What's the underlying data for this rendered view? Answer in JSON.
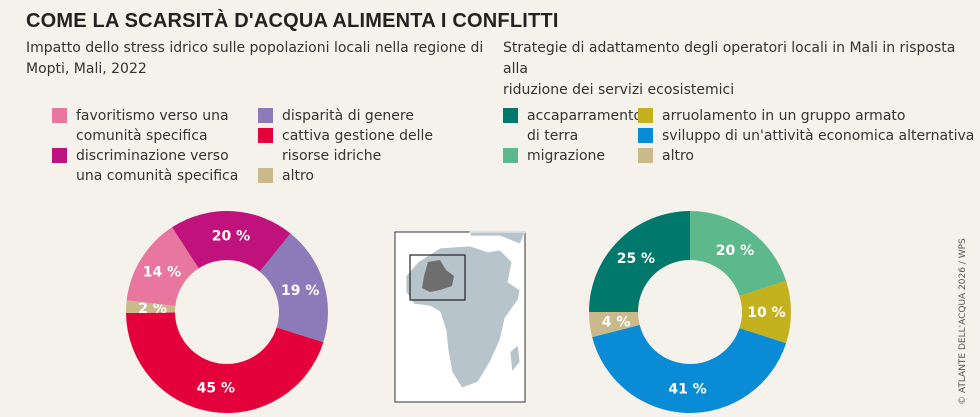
{
  "title": "COME LA SCARSITÀ D'ACQUA ALIMENTA I CONFLITTI",
  "credit": "© ATLANTE DELL'ACQUA 2026 / WPS",
  "chart_data": [
    {
      "type": "pie",
      "donut": true,
      "title": "Impatto dello stress idrico sulle popolazioni locali nella regione di Mopti, Mali, 2022",
      "title_lines": [
        "Impatto dello stress idrico sulle popolazioni locali nella regione di",
        "Mopti, Mali, 2022"
      ],
      "legend": [
        {
          "label": [
            "favoritismo verso una",
            "comunità specifica"
          ],
          "color": "#e8769f"
        },
        {
          "label": [
            "discriminazione verso",
            "una comunità specifica"
          ],
          "color": "#c0127c"
        },
        {
          "label": [
            "disparità di genere"
          ],
          "color": "#8b7cb9"
        },
        {
          "label": [
            "cattiva gestione delle",
            "risorse idriche"
          ],
          "color": "#e3003b"
        },
        {
          "label": [
            "altro"
          ],
          "color": "#c9b98b"
        }
      ],
      "slices": [
        {
          "name": "discriminazione verso una comunità specifica",
          "value": 20,
          "label": "20 %",
          "color": "#c0127c"
        },
        {
          "name": "disparità di genere",
          "value": 19,
          "label": "19 %",
          "color": "#8b7cb9"
        },
        {
          "name": "cattiva gestione delle risorse idriche",
          "value": 45,
          "label": "45 %",
          "color": "#e3003b"
        },
        {
          "name": "altro",
          "value": 2,
          "label": "2 %",
          "color": "#c9b98b"
        },
        {
          "name": "favoritismo verso una comunità specifica",
          "value": 14,
          "label": "14 %",
          "color": "#e8769f"
        }
      ]
    },
    {
      "type": "pie",
      "donut": true,
      "title": "Strategie di adattamento degli operatori locali in Mali in risposta alla riduzione dei servizi ecosistemici",
      "title_lines": [
        "Strategie di adattamento degli operatori locali in Mali in risposta alla",
        "riduzione dei servizi ecosistemici"
      ],
      "legend": [
        {
          "label": [
            "accaparramento",
            "di terra"
          ],
          "color": "#00796c"
        },
        {
          "label": [
            "migrazione"
          ],
          "color": "#5db98b"
        },
        {
          "label": [
            "arruolamento in un gruppo armato"
          ],
          "color": "#c3b11d"
        },
        {
          "label": [
            "sviluppo di un'attività economica alternativa"
          ],
          "color": "#0a8bd6"
        },
        {
          "label": [
            "altro"
          ],
          "color": "#c9b98b"
        }
      ],
      "slices": [
        {
          "name": "migrazione",
          "value": 20,
          "label": "20 %",
          "color": "#5db98b"
        },
        {
          "name": "arruolamento in un gruppo armato",
          "value": 10,
          "label": "10 %",
          "color": "#c3b11d"
        },
        {
          "name": "sviluppo di un'attività economica alternativa",
          "value": 41,
          "label": "41 %",
          "color": "#0a8bd6"
        },
        {
          "name": "altro",
          "value": 4,
          "label": "4 %",
          "color": "#c9b98b"
        },
        {
          "name": "accaparramento di terra",
          "value": 25,
          "label": "25 %",
          "color": "#00796c"
        }
      ]
    }
  ],
  "map": {
    "highlight": "Mali",
    "land_color": "#b8c4cc",
    "highlight_color": "#6e6e6e"
  }
}
